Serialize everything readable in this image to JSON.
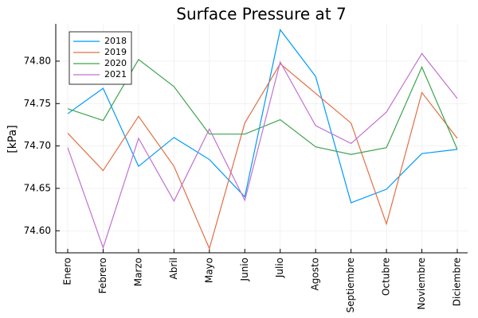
{
  "chart_data": {
    "type": "line",
    "title": "Surface Pressure at 7",
    "y_label": "[kPa]",
    "categories": [
      "Enero",
      "Febrero",
      "Marzo",
      "Abril",
      "Mayo",
      "Junio",
      "Julio",
      "Agosto",
      "Septiembre",
      "Octubre",
      "Noviembre",
      "Diciembre"
    ],
    "series": [
      {
        "name": "2018",
        "color": "#009afa",
        "values": [
          74.738,
          74.768,
          74.676,
          74.71,
          74.684,
          74.64,
          74.837,
          74.782,
          74.633,
          74.649,
          74.691,
          74.696
        ]
      },
      {
        "name": "2019",
        "color": "#e26f46",
        "values": [
          74.715,
          74.671,
          74.735,
          74.676,
          74.579,
          74.727,
          74.797,
          74.762,
          74.727,
          74.608,
          74.763,
          74.709
        ]
      },
      {
        "name": "2020",
        "color": "#3ea44e",
        "values": [
          74.744,
          74.73,
          74.802,
          74.77,
          74.714,
          74.714,
          74.731,
          74.699,
          74.69,
          74.698,
          74.793,
          74.696
        ]
      },
      {
        "name": "2021",
        "color": "#c271d2",
        "values": [
          74.698,
          74.58,
          74.709,
          74.635,
          74.72,
          74.636,
          74.799,
          74.724,
          74.703,
          74.74,
          74.809,
          74.756
        ]
      }
    ],
    "ylim": [
      74.574,
      74.844
    ],
    "yticks": [
      {
        "value": 74.6,
        "label": "74.60"
      },
      {
        "value": 74.65,
        "label": "74.65"
      },
      {
        "value": 74.7,
        "label": "74.70"
      },
      {
        "value": 74.75,
        "label": "74.75"
      },
      {
        "value": 74.8,
        "label": "74.80"
      }
    ],
    "grid": true,
    "legend": "top-left"
  }
}
